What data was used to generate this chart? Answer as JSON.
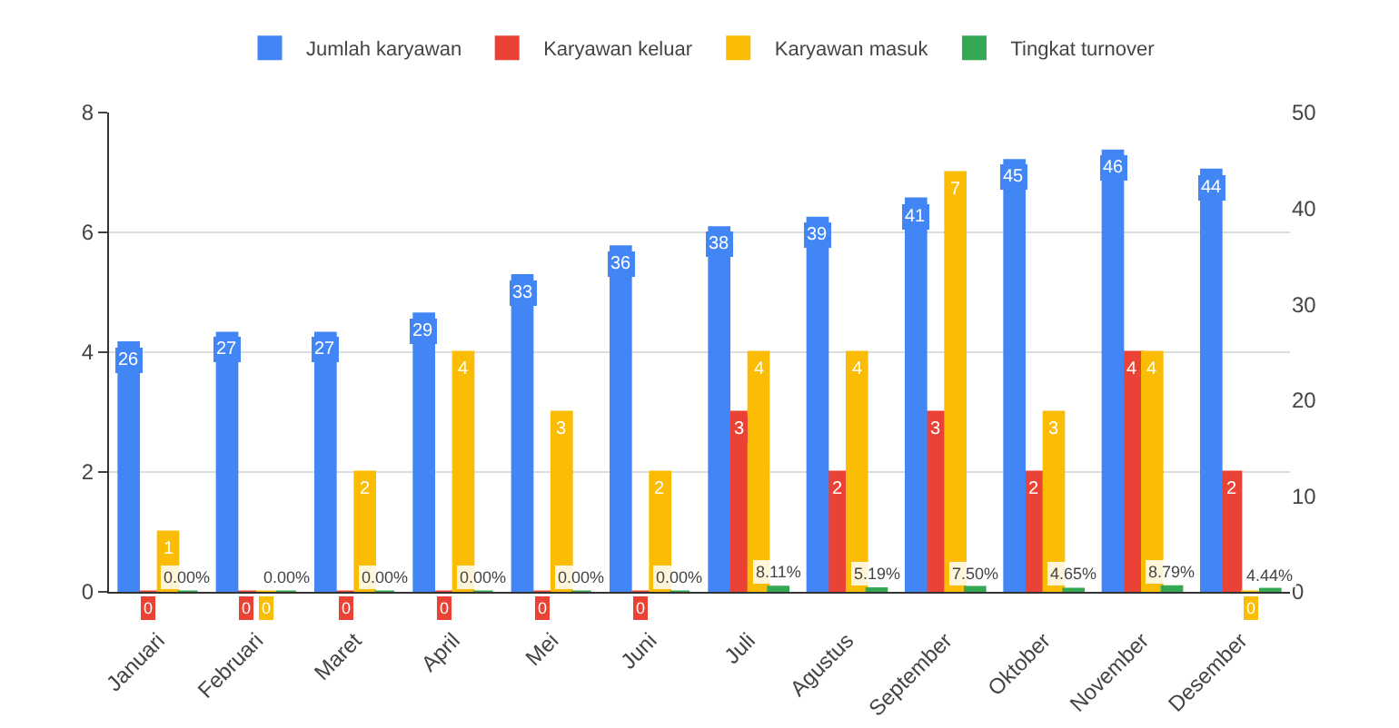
{
  "chart_data": {
    "type": "bar",
    "categories": [
      "Januari",
      "Februari",
      "Maret",
      "April",
      "Mei",
      "Juni",
      "Juli",
      "Agustus",
      "September",
      "Oktober",
      "November",
      "Desember"
    ],
    "series": [
      {
        "name": "Jumlah karyawan",
        "color": "#4285f4",
        "axis": "y2",
        "values": [
          26,
          27,
          27,
          29,
          33,
          36,
          38,
          39,
          41,
          45,
          46,
          44
        ],
        "value_labels": [
          "26",
          "27",
          "27",
          "29",
          "33",
          "36",
          "38",
          "39",
          "41",
          "45",
          "46",
          "44"
        ]
      },
      {
        "name": "Karyawan keluar",
        "color": "#ea4335",
        "values": [
          0,
          0,
          0,
          0,
          0,
          0,
          3,
          2,
          3,
          2,
          4,
          2
        ],
        "value_labels": [
          "0",
          "0",
          "0",
          "0",
          "0",
          "0",
          "3",
          "2",
          "3",
          "2",
          "4",
          "2"
        ]
      },
      {
        "name": "Karyawan masuk",
        "color": "#fbbc04",
        "values": [
          1,
          0,
          2,
          4,
          3,
          2,
          4,
          4,
          7,
          3,
          4,
          0
        ],
        "value_labels": [
          "1",
          "0",
          "2",
          "4",
          "3",
          "2",
          "4",
          "4",
          "7",
          "3",
          "4",
          "0"
        ]
      },
      {
        "name": "Tingkat turnover",
        "color": "#34a853",
        "values": [
          0,
          0,
          0,
          0,
          0,
          0,
          0.0811,
          0.0519,
          0.075,
          0.0465,
          0.0879,
          0.0444
        ],
        "value_labels": [
          "0.00%",
          "0.00%",
          "0.00%",
          "0.00%",
          "0.00%",
          "0.00%",
          "8.11%",
          "5.19%",
          "7.50%",
          "4.65%",
          "8.79%",
          "4.44%"
        ]
      }
    ],
    "ylim": [
      0,
      8
    ],
    "yticks": [
      0,
      2,
      4,
      6,
      8
    ],
    "y2lim": [
      0,
      50
    ],
    "y2ticks": [
      0,
      10,
      20,
      30,
      40,
      50
    ],
    "grid": "y",
    "legend": "top"
  }
}
